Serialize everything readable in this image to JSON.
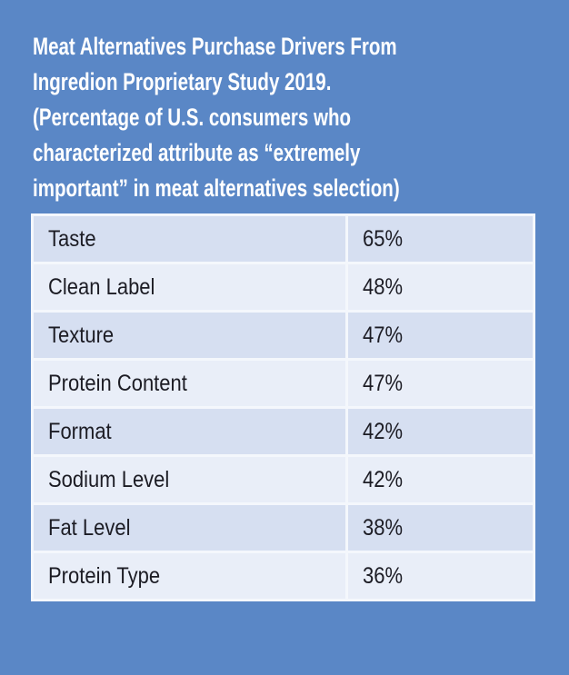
{
  "title": "Meat Alternatives Purchase Drivers From\nIngredion Proprietary Study 2019.\n(Percentage of U.S. consumers who\ncharacterized attribute as “extremely\nimportant” in meat alternatives selection)",
  "colors": {
    "background": "#5a87c6",
    "row_odd": "#d6dff1",
    "row_even": "#e9eef8"
  },
  "chart_data": {
    "type": "table",
    "title": "Meat Alternatives Purchase Drivers From Ingredion Proprietary Study 2019. (Percentage of U.S. consumers who characterized attribute as “extremely important” in meat alternatives selection)",
    "rows": [
      {
        "attribute": "Taste",
        "value": "65%"
      },
      {
        "attribute": "Clean Label",
        "value": "48%"
      },
      {
        "attribute": "Texture",
        "value": "47%"
      },
      {
        "attribute": "Protein Content",
        "value": "47%"
      },
      {
        "attribute": "Format",
        "value": "42%"
      },
      {
        "attribute": "Sodium Level",
        "value": "42%"
      },
      {
        "attribute": "Fat Level",
        "value": "38%"
      },
      {
        "attribute": "Protein Type",
        "value": "36%"
      }
    ]
  }
}
